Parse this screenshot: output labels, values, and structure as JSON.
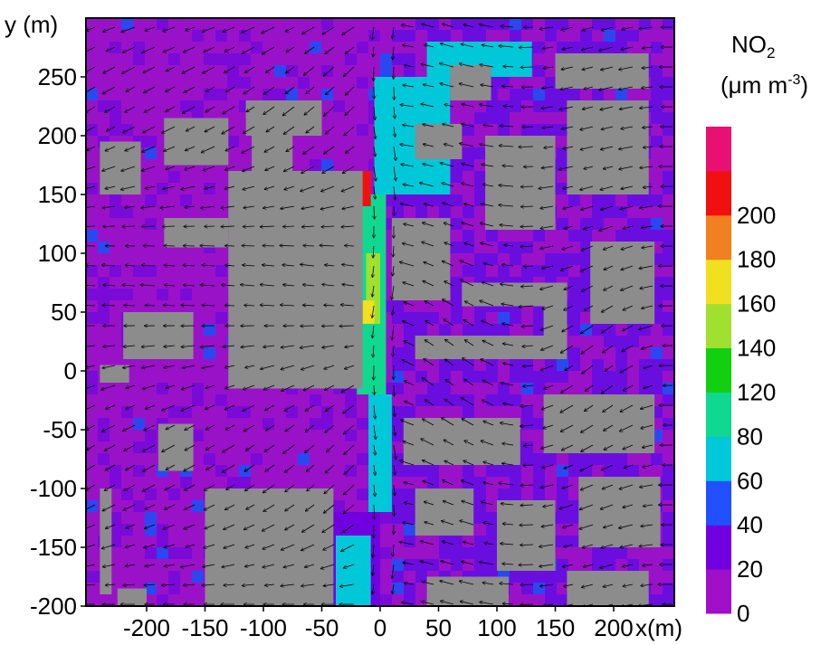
{
  "chart_data": {
    "type": "heatmap",
    "title": "",
    "xlabel": "x(m)",
    "ylabel": "y (m)",
    "xlim": [
      -250,
      250
    ],
    "ylim": [
      -200,
      280
    ],
    "x_ticks": [
      -200,
      -150,
      -100,
      -50,
      0,
      50,
      100,
      150,
      200
    ],
    "y_ticks": [
      250,
      200,
      150,
      100,
      50,
      0,
      -50,
      -100,
      -150,
      -200
    ],
    "x_tick_labels": [
      "-200",
      "-150",
      "-100",
      "-50",
      "0",
      "50",
      "100",
      "150",
      "200"
    ],
    "y_tick_labels": [
      "250",
      "200",
      "150",
      "100",
      "50",
      "0",
      "-50",
      "-100",
      "-150",
      "-200"
    ],
    "colorbar": {
      "title_main": "NO",
      "title_sub": "2",
      "unit_main": "(μm m",
      "unit_sup": "-3",
      "unit_close": ")",
      "levels": [
        0,
        20,
        40,
        60,
        80,
        120,
        140,
        160,
        180,
        200
      ],
      "tick_labels": [
        "0",
        "20",
        "40",
        "60",
        "80",
        "120",
        "140",
        "160",
        "180",
        "200"
      ],
      "colors": [
        "#a010c8",
        "#7000e0",
        "#2050ff",
        "#00c8d8",
        "#10d890",
        "#10d010",
        "#a0e030",
        "#f0e020",
        "#f08020",
        "#f01010",
        "#e81070"
      ]
    },
    "building_color": "#8c8c8c",
    "buildings": [
      {
        "x0": -150,
        "x1": -40,
        "y0": -200,
        "y1": -100
      },
      {
        "x0": -130,
        "x1": -15,
        "y0": -15,
        "y1": 170
      },
      {
        "x0": -220,
        "x1": -160,
        "y0": 10,
        "y1": 50
      },
      {
        "x0": -190,
        "x1": -160,
        "y0": -85,
        "y1": -45
      },
      {
        "x0": -185,
        "x1": -175,
        "y0": 200,
        "y1": 215
      },
      {
        "x0": -185,
        "x1": -130,
        "y0": 175,
        "y1": 215
      },
      {
        "x0": -185,
        "x1": -130,
        "y0": 105,
        "y1": 130
      },
      {
        "x0": -110,
        "x1": -75,
        "y0": 160,
        "y1": 215
      },
      {
        "x0": -115,
        "x1": -50,
        "y0": 200,
        "y1": 230
      },
      {
        "x0": 10,
        "x1": 60,
        "y0": 60,
        "y1": 130
      },
      {
        "x0": 70,
        "x1": 160,
        "y0": 55,
        "y1": 75
      },
      {
        "x0": 30,
        "x1": 160,
        "y0": 10,
        "y1": 30
      },
      {
        "x0": 140,
        "x1": 160,
        "y0": 10,
        "y1": 75
      },
      {
        "x0": 180,
        "x1": 235,
        "y0": 40,
        "y1": 110
      },
      {
        "x0": 90,
        "x1": 150,
        "y0": 120,
        "y1": 200
      },
      {
        "x0": 160,
        "x1": 230,
        "y0": 150,
        "y1": 230
      },
      {
        "x0": 30,
        "x1": 70,
        "y0": 180,
        "y1": 210
      },
      {
        "x0": 60,
        "x1": 95,
        "y0": 230,
        "y1": 260
      },
      {
        "x0": 150,
        "x1": 230,
        "y0": 240,
        "y1": 270
      },
      {
        "x0": 20,
        "x1": 120,
        "y0": -80,
        "y1": -40
      },
      {
        "x0": 140,
        "x1": 235,
        "y0": -70,
        "y1": -20
      },
      {
        "x0": 30,
        "x1": 80,
        "y0": -140,
        "y1": -100
      },
      {
        "x0": 100,
        "x1": 150,
        "y0": -170,
        "y1": -110
      },
      {
        "x0": 170,
        "x1": 240,
        "y0": -150,
        "y1": -90
      },
      {
        "x0": 40,
        "x1": 110,
        "y0": -200,
        "y1": -175
      },
      {
        "x0": 160,
        "x1": 230,
        "y0": -200,
        "y1": -170
      },
      {
        "x0": -240,
        "x1": -230,
        "y0": -190,
        "y1": -100
      },
      {
        "x0": -240,
        "x1": -205,
        "y0": 150,
        "y1": 195
      },
      {
        "x0": -240,
        "x1": -215,
        "y0": -10,
        "y1": 5
      },
      {
        "x0": -225,
        "x1": -200,
        "y0": -200,
        "y1": -185
      }
    ],
    "pollution_plume": [
      {
        "x0": -45,
        "x1": 0,
        "y0": -200,
        "y1": -120,
        "level": "20-40"
      },
      {
        "x0": -38,
        "x1": -8,
        "y0": -200,
        "y1": -140,
        "level": "60-80"
      },
      {
        "x0": -10,
        "x1": 10,
        "y0": -120,
        "y1": -20,
        "level": "60-80"
      },
      {
        "x0": -20,
        "x1": 5,
        "y0": -20,
        "y1": 150,
        "level": "80-120"
      },
      {
        "x0": -12,
        "x1": 0,
        "y0": 40,
        "y1": 100,
        "level": "140-160"
      },
      {
        "x0": -15,
        "x1": -5,
        "y0": 40,
        "y1": 60,
        "level": "160-180"
      },
      {
        "x0": -16,
        "x1": -8,
        "y0": 140,
        "y1": 170,
        "level": ">200"
      },
      {
        "x0": -5,
        "x1": 60,
        "y0": 150,
        "y1": 250,
        "level": "60-80"
      },
      {
        "x0": 40,
        "x1": 130,
        "y0": 250,
        "y1": 280,
        "level": "60-80"
      },
      {
        "x0": -115,
        "x1": -85,
        "y0": 215,
        "y1": 225,
        "level": "120-140"
      }
    ],
    "wind_field": "vector arrows throughout the domain",
    "grid": false
  }
}
